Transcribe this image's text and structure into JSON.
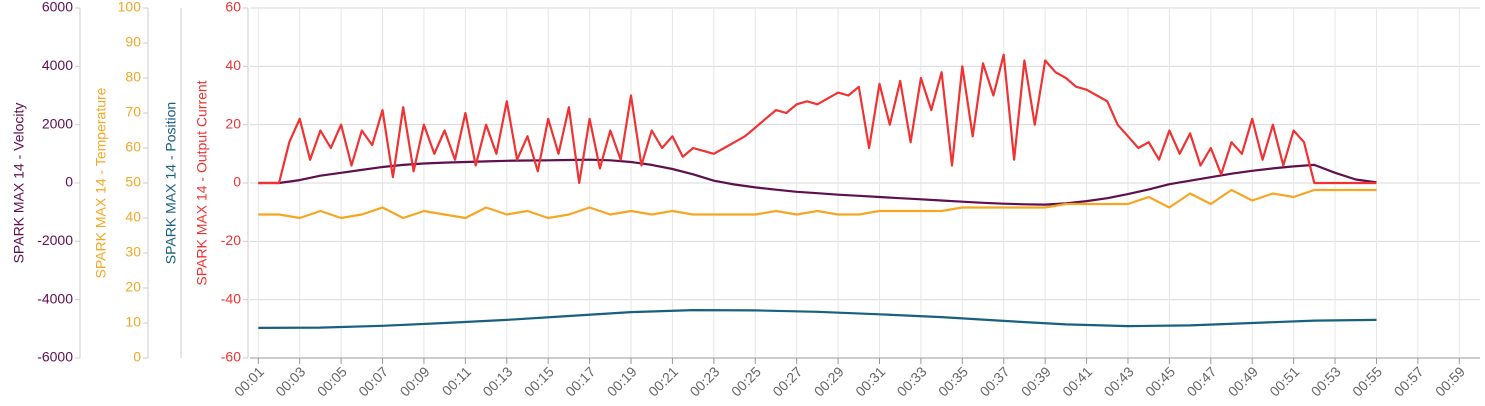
{
  "chart_data": {
    "type": "line",
    "xlim": [
      0.6,
      60
    ],
    "xticks": [
      {
        "value": 1,
        "label": "00:01"
      },
      {
        "value": 3,
        "label": "00:03"
      },
      {
        "value": 5,
        "label": "00:05"
      },
      {
        "value": 7,
        "label": "00:07"
      },
      {
        "value": 9,
        "label": "00:09"
      },
      {
        "value": 11,
        "label": "00:11"
      },
      {
        "value": 13,
        "label": "00:13"
      },
      {
        "value": 15,
        "label": "00:15"
      },
      {
        "value": 17,
        "label": "00:17"
      },
      {
        "value": 19,
        "label": "00:19"
      },
      {
        "value": 21,
        "label": "00:21"
      },
      {
        "value": 23,
        "label": "00:23"
      },
      {
        "value": 25,
        "label": "00:25"
      },
      {
        "value": 27,
        "label": "00:27"
      },
      {
        "value": 29,
        "label": "00:29"
      },
      {
        "value": 31,
        "label": "00:31"
      },
      {
        "value": 33,
        "label": "00:33"
      },
      {
        "value": 35,
        "label": "00:35"
      },
      {
        "value": 37,
        "label": "00:37"
      },
      {
        "value": 39,
        "label": "00:39"
      },
      {
        "value": 41,
        "label": "00:41"
      },
      {
        "value": 43,
        "label": "00:43"
      },
      {
        "value": 45,
        "label": "00:45"
      },
      {
        "value": 47,
        "label": "00:47"
      },
      {
        "value": 49,
        "label": "00:49"
      },
      {
        "value": 51,
        "label": "00:51"
      },
      {
        "value": 53,
        "label": "00:53"
      },
      {
        "value": 55,
        "label": "00:55"
      },
      {
        "value": 57,
        "label": "00:57"
      },
      {
        "value": 59,
        "label": "00:59"
      }
    ],
    "ylim": [
      -60,
      60
    ],
    "yticks": [
      60,
      40,
      20,
      0,
      -20,
      -40,
      -60
    ],
    "y2lim": [
      -6000,
      6000
    ],
    "y2ticks": [
      6000,
      4000,
      2000,
      0,
      -2000,
      -4000,
      -6000
    ],
    "y3lim": [
      0,
      100
    ],
    "y3ticks": [
      100,
      90,
      80,
      70,
      60,
      50,
      40,
      30,
      20,
      10,
      0
    ],
    "y4lim": [
      0,
      100
    ],
    "grid": true,
    "series": [
      {
        "name": "SPARK MAX 14 - Velocity",
        "color": "#5e0f4f",
        "axis": "y2",
        "x": [
          1,
          2,
          3,
          4,
          5,
          6,
          7,
          8,
          9,
          10,
          11,
          12,
          13,
          14,
          15,
          16,
          17,
          18,
          19,
          20,
          21,
          22,
          23,
          24,
          25,
          26,
          27,
          28,
          29,
          30,
          31,
          32,
          33,
          34,
          35,
          36,
          37,
          38,
          39,
          40,
          41,
          42,
          43,
          44,
          45,
          46,
          47,
          48,
          49,
          50,
          51,
          52,
          53,
          54,
          55
        ],
        "values": [
          0,
          0,
          100,
          250,
          350,
          450,
          550,
          620,
          670,
          700,
          720,
          740,
          760,
          770,
          780,
          790,
          800,
          780,
          720,
          620,
          480,
          300,
          80,
          -50,
          -150,
          -230,
          -300,
          -350,
          -400,
          -440,
          -480,
          -520,
          -560,
          -600,
          -640,
          -680,
          -710,
          -730,
          -740,
          -700,
          -620,
          -520,
          -380,
          -220,
          -40,
          80,
          200,
          320,
          420,
          500,
          570,
          620,
          350,
          120,
          20
        ]
      },
      {
        "name": "SPARK MAX 14 - Temperature",
        "color": "#f5a623",
        "axis": "y3",
        "x": [
          1,
          2,
          3,
          4,
          5,
          6,
          7,
          8,
          9,
          10,
          11,
          12,
          13,
          14,
          15,
          16,
          17,
          18,
          19,
          20,
          21,
          22,
          23,
          24,
          25,
          26,
          27,
          28,
          29,
          30,
          31,
          32,
          33,
          34,
          35,
          36,
          37,
          38,
          39,
          40,
          41,
          42,
          43,
          44,
          45,
          46,
          47,
          48,
          49,
          50,
          51,
          52,
          53,
          54,
          55
        ],
        "values": [
          41,
          41,
          40,
          42,
          40,
          41,
          43,
          40,
          42,
          41,
          40,
          43,
          41,
          42,
          40,
          41,
          43,
          41,
          42,
          41,
          42,
          41,
          41,
          41,
          41,
          42,
          41,
          42,
          41,
          41,
          42,
          42,
          42,
          42,
          43,
          43,
          43,
          43,
          43,
          44,
          44,
          44,
          44,
          46,
          43,
          47,
          44,
          48,
          45,
          47,
          46,
          48,
          48,
          48,
          48
        ]
      },
      {
        "name": "SPARK MAX 14 - Position",
        "color": "#17607f",
        "axis": "y4",
        "x": [
          1,
          4,
          7,
          10,
          13,
          16,
          19,
          22,
          25,
          28,
          31,
          34,
          37,
          40,
          43,
          46,
          49,
          52,
          55
        ],
        "values": [
          8.6,
          8.7,
          9.2,
          10.0,
          10.9,
          12.0,
          13.1,
          13.7,
          13.6,
          13.2,
          12.5,
          11.7,
          10.6,
          9.6,
          9.1,
          9.3,
          10.0,
          10.7,
          10.9
        ]
      },
      {
        "name": "SPARK MAX 14 - Output Current",
        "color": "#f03232",
        "axis": "y",
        "x": [
          1,
          1.5,
          2,
          2.5,
          3,
          3.5,
          4,
          4.5,
          5,
          5.5,
          6,
          6.5,
          7,
          7.5,
          8,
          8.5,
          9,
          9.5,
          10,
          10.5,
          11,
          11.5,
          12,
          12.5,
          13,
          13.5,
          14,
          14.5,
          15,
          15.5,
          16,
          16.5,
          17,
          17.5,
          18,
          18.5,
          19,
          19.5,
          20,
          20.5,
          21,
          21.5,
          22,
          22.5,
          23,
          23.5,
          24,
          24.5,
          25,
          25.5,
          26,
          26.5,
          27,
          27.5,
          28,
          28.5,
          29,
          29.5,
          30,
          30.5,
          31,
          31.5,
          32,
          32.5,
          33,
          33.5,
          34,
          34.5,
          35,
          35.5,
          36,
          36.5,
          37,
          37.5,
          38,
          38.5,
          39,
          39.5,
          40,
          40.5,
          41,
          41.5,
          42,
          42.5,
          43,
          43.5,
          44,
          44.5,
          45,
          45.5,
          46,
          46.5,
          47,
          47.5,
          48,
          48.5,
          49,
          49.5,
          50,
          50.5,
          51,
          51.5,
          52,
          52.5,
          53,
          53.5,
          54,
          54.5,
          55
        ],
        "values": [
          0,
          0,
          0,
          14,
          22,
          8,
          18,
          12,
          20,
          6,
          18,
          13,
          25,
          2,
          26,
          4,
          20,
          10,
          18,
          8,
          24,
          6,
          20,
          10,
          28,
          8,
          16,
          4,
          22,
          10,
          26,
          0,
          22,
          5,
          18,
          8,
          30,
          6,
          18,
          12,
          16,
          9,
          12,
          11,
          10,
          12,
          14,
          16,
          19,
          22,
          25,
          24,
          27,
          28,
          27,
          29,
          31,
          30,
          33,
          12,
          34,
          20,
          35,
          14,
          36,
          25,
          38,
          6,
          40,
          16,
          41,
          30,
          44,
          8,
          42,
          20,
          42,
          38,
          36,
          33,
          32,
          30,
          28,
          20,
          16,
          12,
          14,
          8,
          18,
          10,
          17,
          6,
          12,
          3,
          14,
          10,
          22,
          8,
          20,
          6,
          18,
          14,
          0,
          0,
          0,
          0,
          0,
          0,
          0
        ]
      }
    ]
  }
}
